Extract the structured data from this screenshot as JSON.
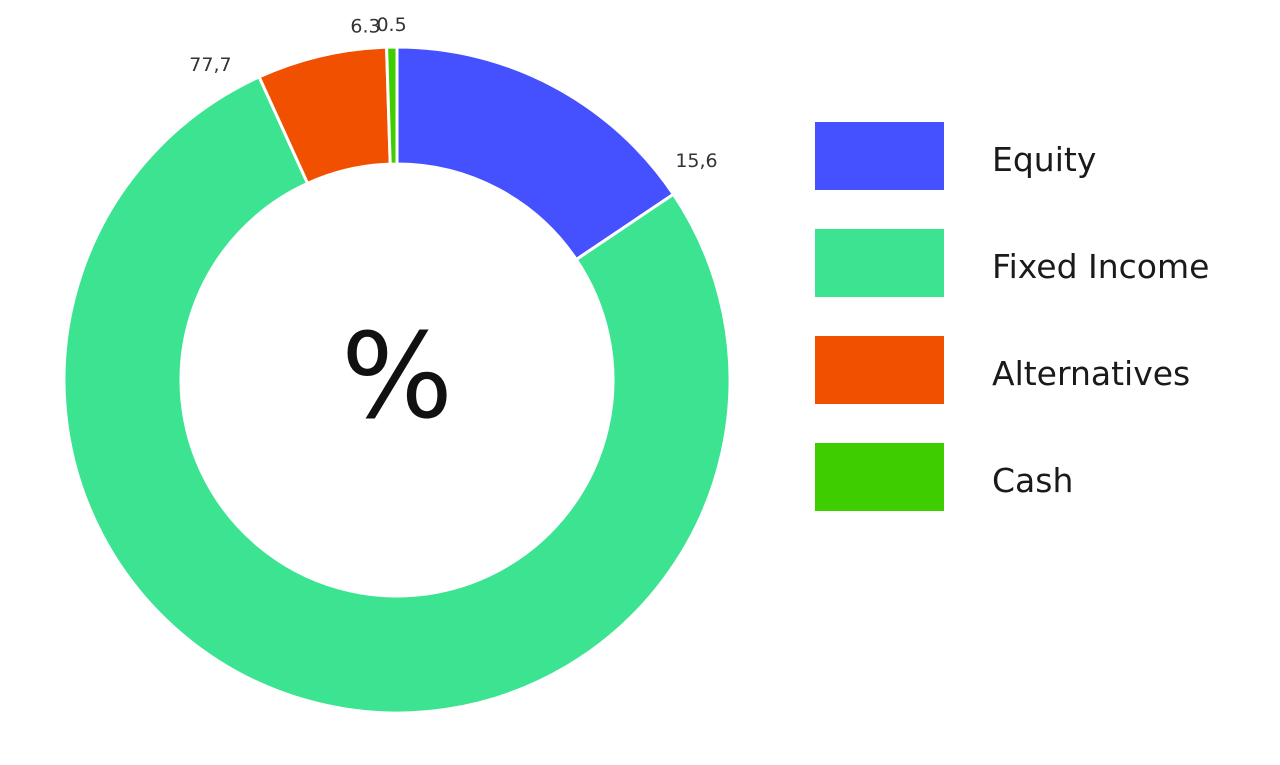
{
  "chart_data": {
    "type": "pie",
    "center_label": "%",
    "categories": [
      "Equity",
      "Fixed Income",
      "Alternatives",
      "Cash"
    ],
    "values": [
      15.6,
      77.7,
      6.3,
      0.5
    ],
    "value_labels": [
      "15,6",
      "77,7",
      "6.3",
      "0.5"
    ],
    "colors": [
      "#4550FF",
      "#3CE391",
      "#F05000",
      "#3ECE00"
    ],
    "legend_placement": "right"
  }
}
